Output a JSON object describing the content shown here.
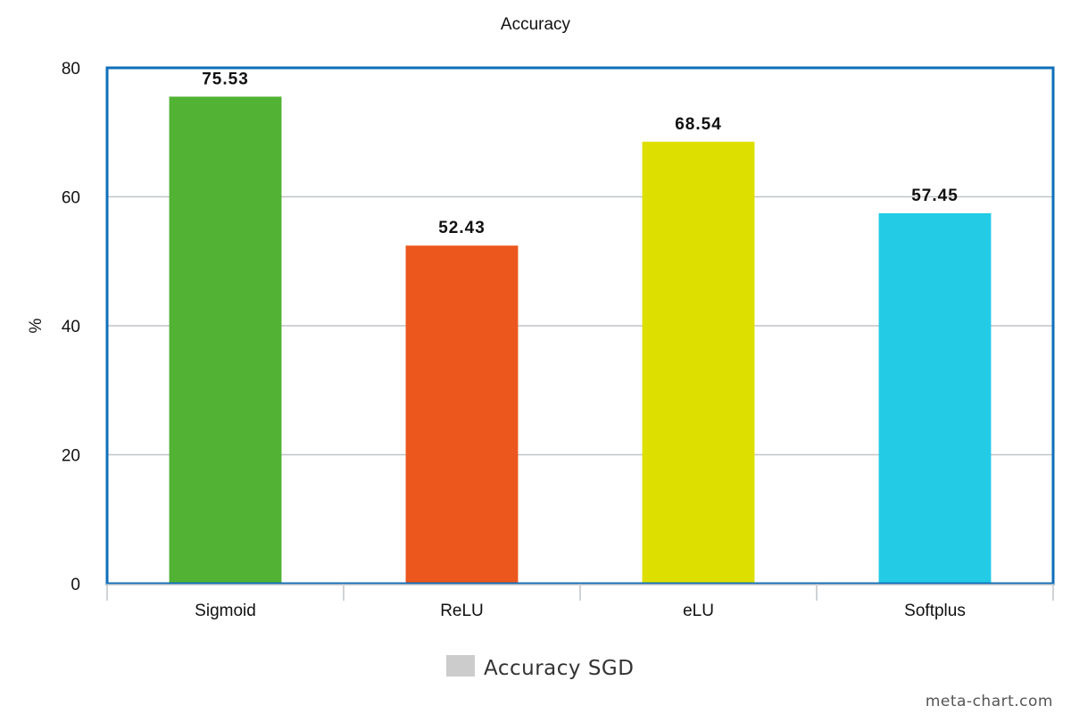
{
  "chart_data": {
    "type": "bar",
    "title": "Accuracy",
    "xlabel": "",
    "ylabel": "%",
    "ylim": [
      0,
      80
    ],
    "yticks": [
      "0",
      "20",
      "40",
      "60",
      "80"
    ],
    "categories": [
      "Sigmoid",
      "ReLU",
      "eLU",
      "Softplus"
    ],
    "values": [
      75.53,
      52.43,
      68.54,
      57.45
    ],
    "data_labels": [
      "75.53",
      "52.43",
      "68.54",
      "57.45"
    ],
    "bar_colors": [
      "#52b234",
      "#ec571e",
      "#dddf00",
      "#24cbe5"
    ],
    "grid": true,
    "legend": {
      "position": "bottom-center",
      "entries": [
        {
          "name": "Accuracy SGD",
          "color": "#cccccc"
        }
      ]
    },
    "frame_color": "#0f6fba",
    "grid_color": "#c0c4c8"
  },
  "watermark": "meta-chart.com"
}
